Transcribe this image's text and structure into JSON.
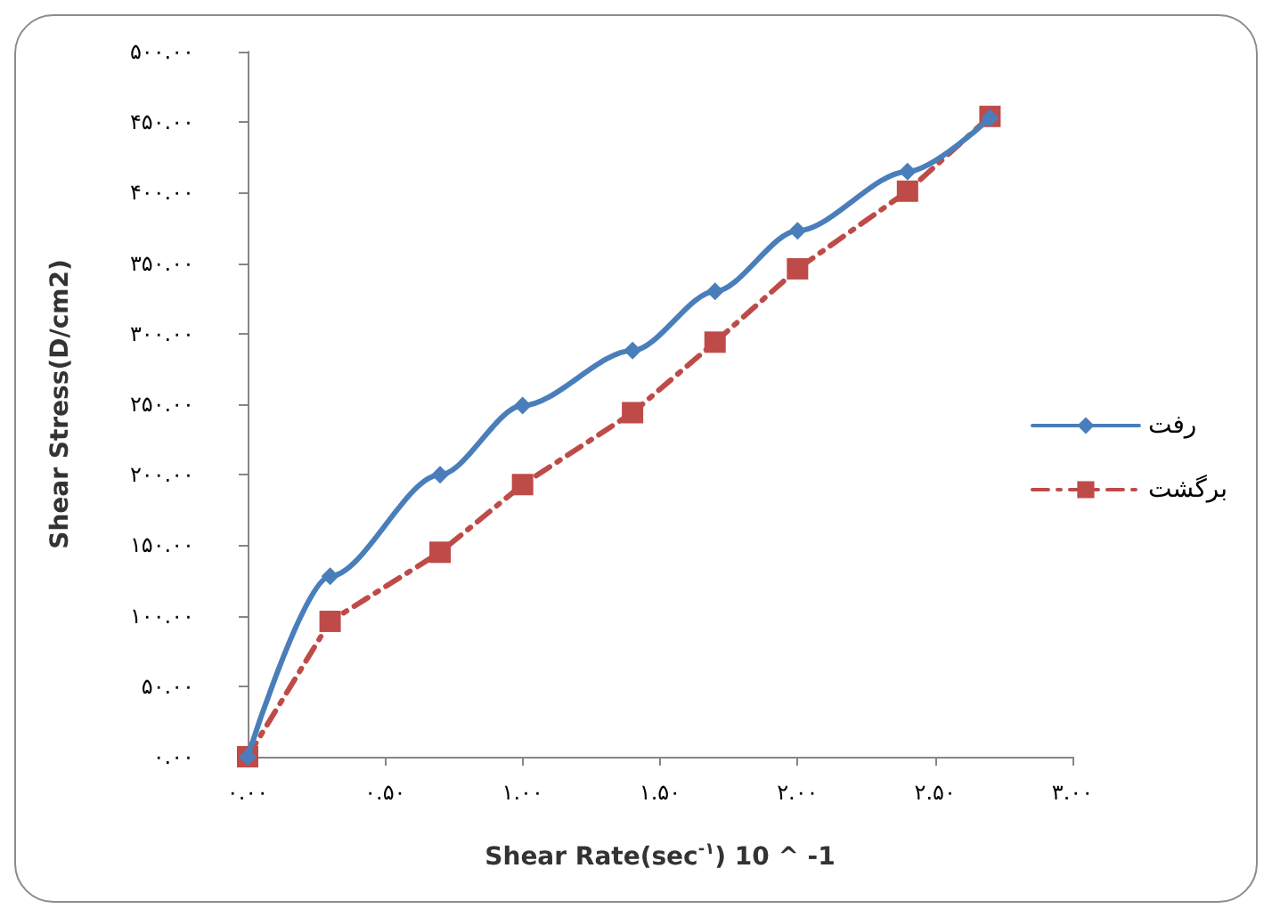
{
  "chart_data": {
    "type": "line",
    "xlabel": "Shear Rate(sec$^{-۱}$) 10 ^ -1",
    "ylabel": "Shear Stress(D/cm2)",
    "xlim": [
      0,
      3
    ],
    "xticks": [
      {
        "value": 0,
        "label": "۰.۰۰"
      },
      {
        "value": 0.5,
        "label": "۰.۵۰"
      },
      {
        "value": 1,
        "label": "۱.۰۰"
      },
      {
        "value": 1.5,
        "label": "۱.۵۰"
      },
      {
        "value": 2,
        "label": "۲.۰۰"
      },
      {
        "value": 2.5,
        "label": "۲.۵۰"
      },
      {
        "value": 3,
        "label": "۳.۰۰"
      }
    ],
    "ylim": [
      0,
      500
    ],
    "yticks": [
      {
        "value": 0,
        "label": "۰.۰۰"
      },
      {
        "value": 50,
        "label": "۵۰.۰۰"
      },
      {
        "value": 100,
        "label": "۱۰۰.۰۰"
      },
      {
        "value": 150,
        "label": "۱۵۰.۰۰"
      },
      {
        "value": 200,
        "label": "۲۰۰.۰۰"
      },
      {
        "value": 250,
        "label": "۲۵۰.۰۰"
      },
      {
        "value": 300,
        "label": "۳۰۰.۰۰"
      },
      {
        "value": 350,
        "label": "۳۵۰.۰۰"
      },
      {
        "value": 400,
        "label": "۴۰۰.۰۰"
      },
      {
        "value": 450,
        "label": "۴۵۰.۰۰"
      },
      {
        "value": 500,
        "label": "۵۰۰.۰۰"
      }
    ],
    "x": [
      0,
      0.3,
      0.7,
      1.0,
      1.4,
      1.7,
      2.0,
      2.4,
      2.7
    ],
    "series": [
      {
        "name": "رفت",
        "color": "#4a7ebb",
        "marker": "diamond",
        "line_style": "solid",
        "values": [
          0,
          128,
          200,
          249,
          288,
          330,
          373,
          415,
          453
        ]
      },
      {
        "name": "برگشت",
        "color": "#be4b48",
        "marker": "square",
        "line_style": "dashed",
        "values": [
          0,
          96,
          145,
          193,
          244,
          294,
          346,
          401,
          454
        ]
      }
    ],
    "grid": false,
    "legend": "right"
  }
}
